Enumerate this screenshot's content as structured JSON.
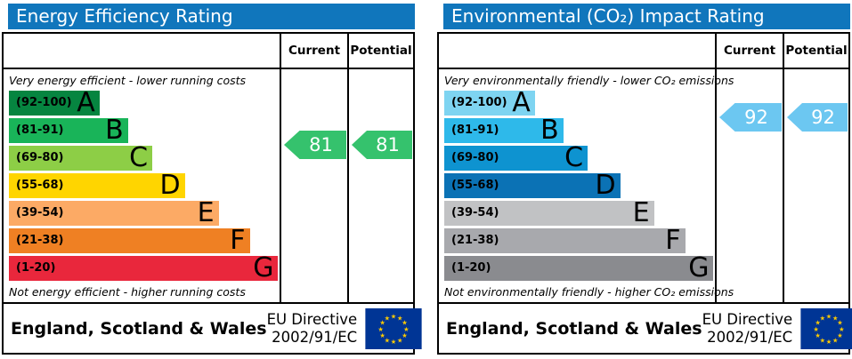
{
  "colors": {
    "header_bg": "#1076bc",
    "eu_flag_bg": "#003595",
    "eu_star": "#ffcc00"
  },
  "panels": [
    {
      "title": "Energy Efficiency Rating",
      "columns": {
        "current": "Current",
        "potential": "Potential"
      },
      "top_note": "Very energy efficient - lower running costs",
      "bottom_note": "Not energy efficient - higher running costs",
      "bands": [
        {
          "letter": "A",
          "range_label": "(92-100)",
          "min": 92,
          "max": 100,
          "color": "#068540",
          "width_pct": 33.5
        },
        {
          "letter": "B",
          "range_label": "(81-91)",
          "min": 81,
          "max": 91,
          "color": "#19b459",
          "width_pct": 44
        },
        {
          "letter": "C",
          "range_label": "(69-80)",
          "min": 69,
          "max": 80,
          "color": "#8dce46",
          "width_pct": 53
        },
        {
          "letter": "D",
          "range_label": "(55-68)",
          "min": 55,
          "max": 68,
          "color": "#ffd500",
          "width_pct": 65
        },
        {
          "letter": "E",
          "range_label": "(39-54)",
          "min": 39,
          "max": 54,
          "color": "#fcaa65",
          "width_pct": 77.5
        },
        {
          "letter": "F",
          "range_label": "(21-38)",
          "min": 21,
          "max": 38,
          "color": "#ef8023",
          "width_pct": 89
        },
        {
          "letter": "G",
          "range_label": "(1-20)",
          "min": 1,
          "max": 20,
          "color": "#e9273c",
          "width_pct": 99.5
        }
      ],
      "current": {
        "value": 81,
        "arrow_color": "#35c26d"
      },
      "potential": {
        "value": 81,
        "arrow_color": "#35c26d"
      },
      "footer": {
        "region": "England, Scotland & Wales",
        "directive_line1": "EU Directive",
        "directive_line2": "2002/91/EC"
      }
    },
    {
      "title": "Environmental (CO₂) Impact Rating",
      "columns": {
        "current": "Current",
        "potential": "Potential"
      },
      "top_note": "Very environmentally friendly - lower CO₂ emissions",
      "bottom_note": "Not environmentally friendly - higher CO₂ emissions",
      "bands": [
        {
          "letter": "A",
          "range_label": "(92-100)",
          "min": 92,
          "max": 100,
          "color": "#7ed4f1",
          "width_pct": 33.5
        },
        {
          "letter": "B",
          "range_label": "(81-91)",
          "min": 81,
          "max": 91,
          "color": "#2eb9ea",
          "width_pct": 44
        },
        {
          "letter": "C",
          "range_label": "(69-80)",
          "min": 69,
          "max": 80,
          "color": "#0e93d0",
          "width_pct": 53
        },
        {
          "letter": "D",
          "range_label": "(55-68)",
          "min": 55,
          "max": 68,
          "color": "#0b72b5",
          "width_pct": 65
        },
        {
          "letter": "E",
          "range_label": "(39-54)",
          "min": 39,
          "max": 54,
          "color": "#c1c2c4",
          "width_pct": 77.5
        },
        {
          "letter": "F",
          "range_label": "(21-38)",
          "min": 21,
          "max": 38,
          "color": "#a8a9ad",
          "width_pct": 89
        },
        {
          "letter": "G",
          "range_label": "(1-20)",
          "min": 1,
          "max": 20,
          "color": "#8a8b8f",
          "width_pct": 99.5
        }
      ],
      "current": {
        "value": 92,
        "arrow_color": "#6cc7f1"
      },
      "potential": {
        "value": 92,
        "arrow_color": "#6cc7f1"
      },
      "footer": {
        "region": "England, Scotland & Wales",
        "directive_line1": "EU Directive",
        "directive_line2": "2002/91/EC"
      }
    }
  ],
  "chart_data": [
    {
      "type": "bar",
      "subtype": "epc-rating-scale",
      "title": "Energy Efficiency Rating",
      "categories": [
        "A (92-100)",
        "B (81-91)",
        "C (69-80)",
        "D (55-68)",
        "E (39-54)",
        "F (21-38)",
        "G (1-20)"
      ],
      "band_colors": [
        "#068540",
        "#19b459",
        "#8dce46",
        "#ffd500",
        "#fcaa65",
        "#ef8023",
        "#e9273c"
      ],
      "series": [
        {
          "name": "Current",
          "values": [
            81
          ]
        },
        {
          "name": "Potential",
          "values": [
            81
          ]
        }
      ],
      "scale": [
        1,
        100
      ],
      "top_annotation": "Very energy efficient - lower running costs",
      "bottom_annotation": "Not energy efficient - higher running costs",
      "footer": "England, Scotland & Wales — EU Directive 2002/91/EC"
    },
    {
      "type": "bar",
      "subtype": "epc-rating-scale",
      "title": "Environmental (CO₂) Impact Rating",
      "categories": [
        "A (92-100)",
        "B (81-91)",
        "C (69-80)",
        "D (55-68)",
        "E (39-54)",
        "F (21-38)",
        "G (1-20)"
      ],
      "band_colors": [
        "#7ed4f1",
        "#2eb9ea",
        "#0e93d0",
        "#0b72b5",
        "#c1c2c4",
        "#a8a9ad",
        "#8a8b8f"
      ],
      "series": [
        {
          "name": "Current",
          "values": [
            92
          ]
        },
        {
          "name": "Potential",
          "values": [
            92
          ]
        }
      ],
      "scale": [
        1,
        100
      ],
      "top_annotation": "Very environmentally friendly - lower CO₂ emissions",
      "bottom_annotation": "Not environmentally friendly - higher CO₂ emissions",
      "footer": "England, Scotland & Wales — EU Directive 2002/91/EC"
    }
  ]
}
